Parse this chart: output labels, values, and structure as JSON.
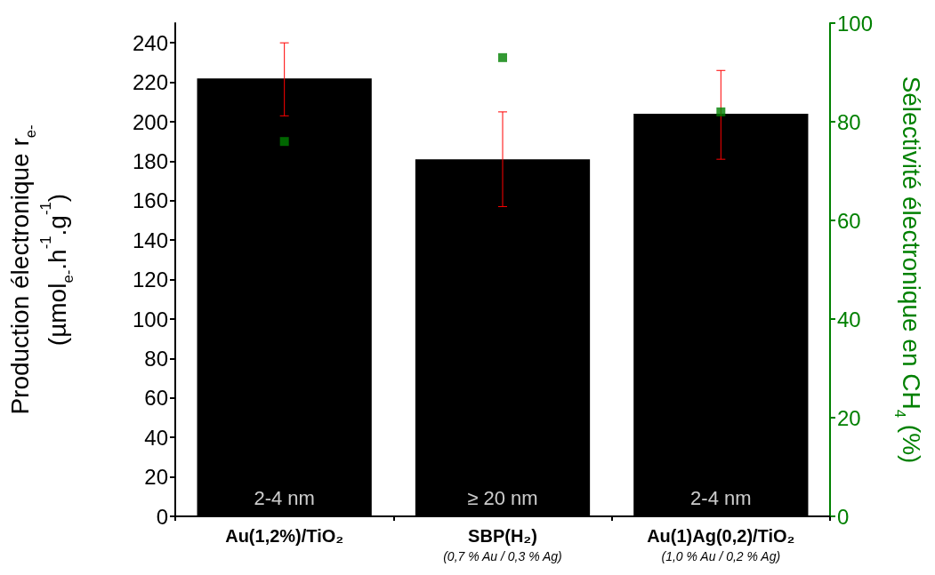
{
  "chart_data": {
    "type": "bar",
    "ylabel": "Production électronique r$_{e-}$\n(µmol$_{e-}$.h$^{-1}$.g$^{-1}$)",
    "y2label": "Sélectivité électronique en CH$_{4}$ (%)",
    "categories": [
      "Au(1,2%)/TiO₂",
      "SBP(H₂)\n(0,7 % Au / 0,3 % Ag)",
      "Au(1)Ag(0,2)/TiO₂\n(1,0 % Au / 0,2 % Ag)"
    ],
    "series": [
      {
        "color": "#000000",
        "values": [
          222,
          181,
          204
        ],
        "errors": [
          [
            203,
            240
          ],
          [
            157,
            205
          ],
          [
            181,
            226
          ]
        ]
      },
      {
        "type": "scatter",
        "axis": "y2",
        "color": "#008000",
        "marker": "square",
        "values": [
          76,
          93,
          82
        ]
      }
    ],
    "ylim": [
      0,
      250
    ],
    "yticks": [
      0,
      20,
      40,
      60,
      80,
      100,
      120,
      140,
      160,
      180,
      200,
      220,
      240
    ],
    "y2lim": [
      0,
      100
    ],
    "y2ticks": [
      0,
      20,
      40,
      60,
      80,
      100
    ],
    "annotations": [
      "2-4 nm",
      "≥ 20 nm",
      "2-4 nm"
    ],
    "grid": false
  }
}
